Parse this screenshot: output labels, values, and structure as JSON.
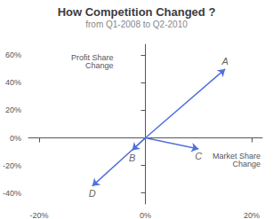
{
  "chart_data": {
    "type": "arrow",
    "title": "How Competition Changed ?",
    "subtitle": "from Q1-2008 to Q2-2010",
    "xlabel": "Market Share\nChange",
    "ylabel": "Profit Share\nChange",
    "x": [
      0.15,
      -0.025,
      0.1,
      -0.1
    ],
    "values": [
      0.5,
      -0.09,
      -0.08,
      -0.35
    ],
    "labels": [
      "A",
      "B",
      "C",
      "D"
    ],
    "xlim": [
      -0.22,
      0.22
    ],
    "ylim": [
      -0.48,
      0.68
    ],
    "xticks": [
      {
        "value": -0.2,
        "label": "-20%"
      },
      {
        "value": 0.0,
        "label": "0%"
      },
      {
        "value": 0.2,
        "label": "20%"
      }
    ],
    "yticks": [
      {
        "value": -0.4,
        "label": "-40%"
      },
      {
        "value": -0.2,
        "label": "-20%"
      },
      {
        "value": 0.0,
        "label": "0%"
      },
      {
        "value": 0.2,
        "label": "20%"
      },
      {
        "value": 0.4,
        "label": "40%"
      },
      {
        "value": 0.6,
        "label": "60%"
      }
    ],
    "grid": false
  }
}
